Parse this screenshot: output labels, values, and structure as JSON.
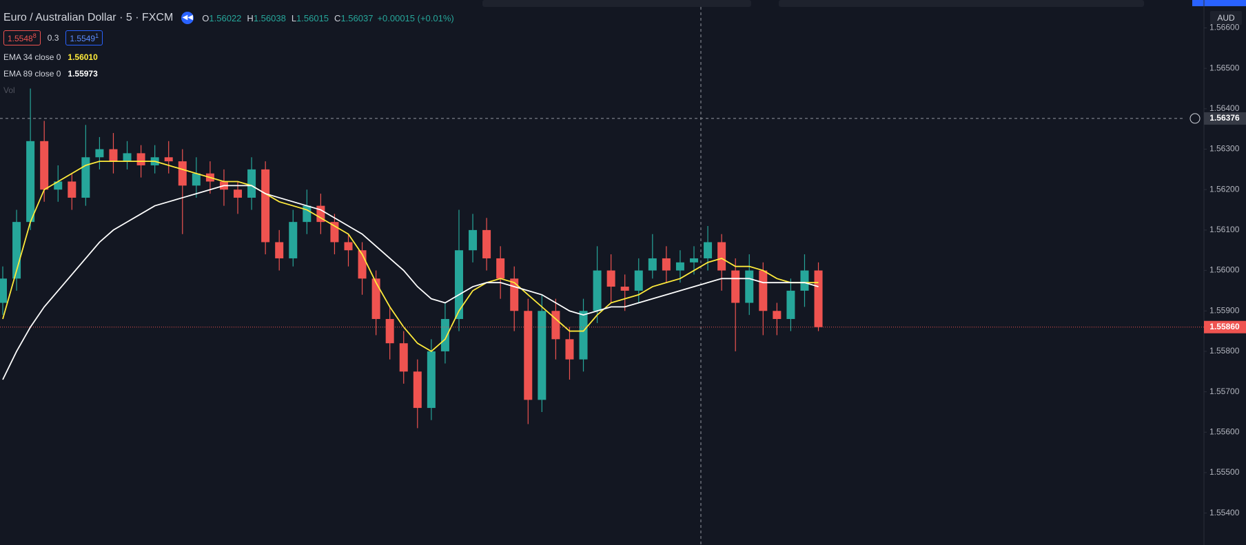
{
  "header": {
    "symbol": "Euro / Australian Dollar · 5 · FXCM",
    "ohlc": [
      {
        "key": "O",
        "value": "1.56022"
      },
      {
        "key": "H",
        "value": "1.56038"
      },
      {
        "key": "L",
        "value": "1.56015"
      },
      {
        "key": "C",
        "value": "1.56037"
      }
    ],
    "change": "+0.00015 (+0.01%)",
    "sell": {
      "price": "1.5548",
      "pip": "8"
    },
    "spread": "0.3",
    "buy": {
      "price": "1.5549",
      "pip": "1"
    },
    "indicators": [
      {
        "name": "EMA 34 close 0",
        "value": "1.56010"
      },
      {
        "name": "EMA 89 close 0",
        "value": "1.55973"
      },
      {
        "name": "Vol"
      }
    ],
    "currency": "AUD"
  },
  "chart_data": {
    "type": "candlestick",
    "up_color": "#26a69a",
    "down_color": "#ef5350",
    "ylim": [
      1.55321,
      1.56669
    ],
    "yticks": [
      {
        "value": 1.566,
        "label": "1.56600"
      },
      {
        "value": 1.565,
        "label": "1.56500"
      },
      {
        "value": 1.564,
        "label": "1.56400"
      },
      {
        "value": 1.563,
        "label": "1.56300"
      },
      {
        "value": 1.562,
        "label": "1.56200"
      },
      {
        "value": 1.561,
        "label": "1.56100"
      },
      {
        "value": 1.56,
        "label": "1.56000"
      },
      {
        "value": 1.559,
        "label": "1.55900"
      },
      {
        "value": 1.558,
        "label": "1.55800"
      },
      {
        "value": 1.557,
        "label": "1.55700"
      },
      {
        "value": 1.556,
        "label": "1.55600"
      },
      {
        "value": 1.555,
        "label": "1.55500"
      },
      {
        "value": 1.554,
        "label": "1.55400"
      }
    ],
    "open": [
      1.5592,
      1.5598,
      1.5612,
      1.5632,
      1.562,
      1.5622,
      1.5618,
      1.5628,
      1.563,
      1.5627,
      1.5629,
      1.5626,
      1.5628,
      1.5627,
      1.5621,
      1.5624,
      1.5622,
      1.562,
      1.5618,
      1.5625,
      1.5607,
      1.5603,
      1.5612,
      1.5616,
      1.5612,
      1.5607,
      1.5605,
      1.5598,
      1.5588,
      1.5582,
      1.5575,
      1.5566,
      1.558,
      1.5588,
      1.5605,
      1.561,
      1.5603,
      1.5598,
      1.559,
      1.5568,
      1.559,
      1.5583,
      1.5578,
      1.559,
      1.56,
      1.5596,
      1.5595,
      1.56,
      1.5603,
      1.56,
      1.5602,
      1.5603,
      1.5607,
      1.56,
      1.5592,
      1.56,
      1.559,
      1.5588,
      1.5595,
      1.56
    ],
    "high": [
      1.5601,
      1.5615,
      1.5645,
      1.5637,
      1.5626,
      1.5624,
      1.5636,
      1.5633,
      1.5634,
      1.5632,
      1.5631,
      1.5631,
      1.5632,
      1.563,
      1.5628,
      1.5627,
      1.5625,
      1.5622,
      1.5628,
      1.5627,
      1.561,
      1.5615,
      1.562,
      1.5619,
      1.5614,
      1.5609,
      1.5607,
      1.56,
      1.5591,
      1.5585,
      1.5578,
      1.5583,
      1.5592,
      1.5615,
      1.5614,
      1.5613,
      1.5606,
      1.5601,
      1.5593,
      1.5594,
      1.5593,
      1.5586,
      1.5593,
      1.5606,
      1.5604,
      1.5599,
      1.5603,
      1.5609,
      1.5606,
      1.5605,
      1.5606,
      1.5611,
      1.5609,
      1.5603,
      1.5604,
      1.5602,
      1.5592,
      1.5598,
      1.5604,
      1.5602
    ],
    "low": [
      1.5589,
      1.5595,
      1.561,
      1.5617,
      1.5617,
      1.5615,
      1.5616,
      1.5625,
      1.5624,
      1.5625,
      1.5623,
      1.5624,
      1.5624,
      1.5609,
      1.5618,
      1.5619,
      1.5616,
      1.5614,
      1.5615,
      1.5604,
      1.56,
      1.5601,
      1.5609,
      1.5609,
      1.5604,
      1.5601,
      1.5594,
      1.5584,
      1.5578,
      1.5572,
      1.5561,
      1.5563,
      1.5577,
      1.5585,
      1.5602,
      1.56,
      1.5593,
      1.5585,
      1.5562,
      1.5565,
      1.5578,
      1.5573,
      1.5575,
      1.5587,
      1.5592,
      1.559,
      1.5592,
      1.5598,
      1.5597,
      1.5597,
      1.5599,
      1.56,
      1.5595,
      1.558,
      1.5589,
      1.5584,
      1.5584,
      1.5585,
      1.5591,
      1.5585
    ],
    "close": [
      1.5598,
      1.5612,
      1.5632,
      1.562,
      1.5622,
      1.5618,
      1.5628,
      1.563,
      1.5627,
      1.5629,
      1.5626,
      1.5628,
      1.5627,
      1.5621,
      1.5624,
      1.5622,
      1.562,
      1.5618,
      1.5625,
      1.5607,
      1.5603,
      1.5612,
      1.5616,
      1.5612,
      1.5607,
      1.5605,
      1.5598,
      1.5588,
      1.5582,
      1.5575,
      1.5566,
      1.558,
      1.5588,
      1.5605,
      1.561,
      1.5603,
      1.5598,
      1.559,
      1.5568,
      1.559,
      1.5583,
      1.5578,
      1.559,
      1.56,
      1.5596,
      1.5595,
      1.56,
      1.5603,
      1.56,
      1.5602,
      1.5603,
      1.5607,
      1.56,
      1.5592,
      1.56,
      1.559,
      1.5588,
      1.5595,
      1.56,
      1.5586
    ],
    "series": [
      {
        "color": "#ffeb3b",
        "values": [
          1.5588,
          1.56,
          1.5612,
          1.562,
          1.5622,
          1.5624,
          1.5626,
          1.5627,
          1.5627,
          1.5627,
          1.5627,
          1.5627,
          1.5626,
          1.5625,
          1.5624,
          1.5623,
          1.5622,
          1.5622,
          1.5621,
          1.5619,
          1.5617,
          1.5616,
          1.5615,
          1.5613,
          1.5611,
          1.5609,
          1.5604,
          1.5597,
          1.5591,
          1.5586,
          1.5582,
          1.558,
          1.5583,
          1.559,
          1.5595,
          1.5597,
          1.5598,
          1.5597,
          1.5594,
          1.5591,
          1.5588,
          1.5585,
          1.5585,
          1.5589,
          1.5592,
          1.5593,
          1.5594,
          1.5596,
          1.5597,
          1.5598,
          1.56,
          1.5602,
          1.5603,
          1.5601,
          1.5601,
          1.56,
          1.5598,
          1.5597,
          1.5597,
          1.5597
        ]
      },
      {
        "color": "#ffffff",
        "values": [
          1.5573,
          1.558,
          1.5586,
          1.5591,
          1.5595,
          1.5599,
          1.5603,
          1.5607,
          1.561,
          1.5612,
          1.5614,
          1.5616,
          1.5617,
          1.5618,
          1.5619,
          1.562,
          1.5621,
          1.5621,
          1.5621,
          1.5619,
          1.5618,
          1.5617,
          1.5616,
          1.5615,
          1.5613,
          1.5611,
          1.5609,
          1.5606,
          1.5603,
          1.56,
          1.5596,
          1.5593,
          1.5592,
          1.5594,
          1.5596,
          1.5597,
          1.5597,
          1.5596,
          1.5595,
          1.5594,
          1.5592,
          1.559,
          1.5589,
          1.559,
          1.5591,
          1.5591,
          1.5592,
          1.5593,
          1.5594,
          1.5595,
          1.5596,
          1.5597,
          1.5598,
          1.5598,
          1.5598,
          1.5597,
          1.5597,
          1.5597,
          1.5597,
          1.5596
        ]
      }
    ],
    "last_price": {
      "value": 1.5586,
      "label": "1.55860"
    },
    "crosshair_price": {
      "value": 1.56376,
      "label": "1.56376"
    }
  }
}
